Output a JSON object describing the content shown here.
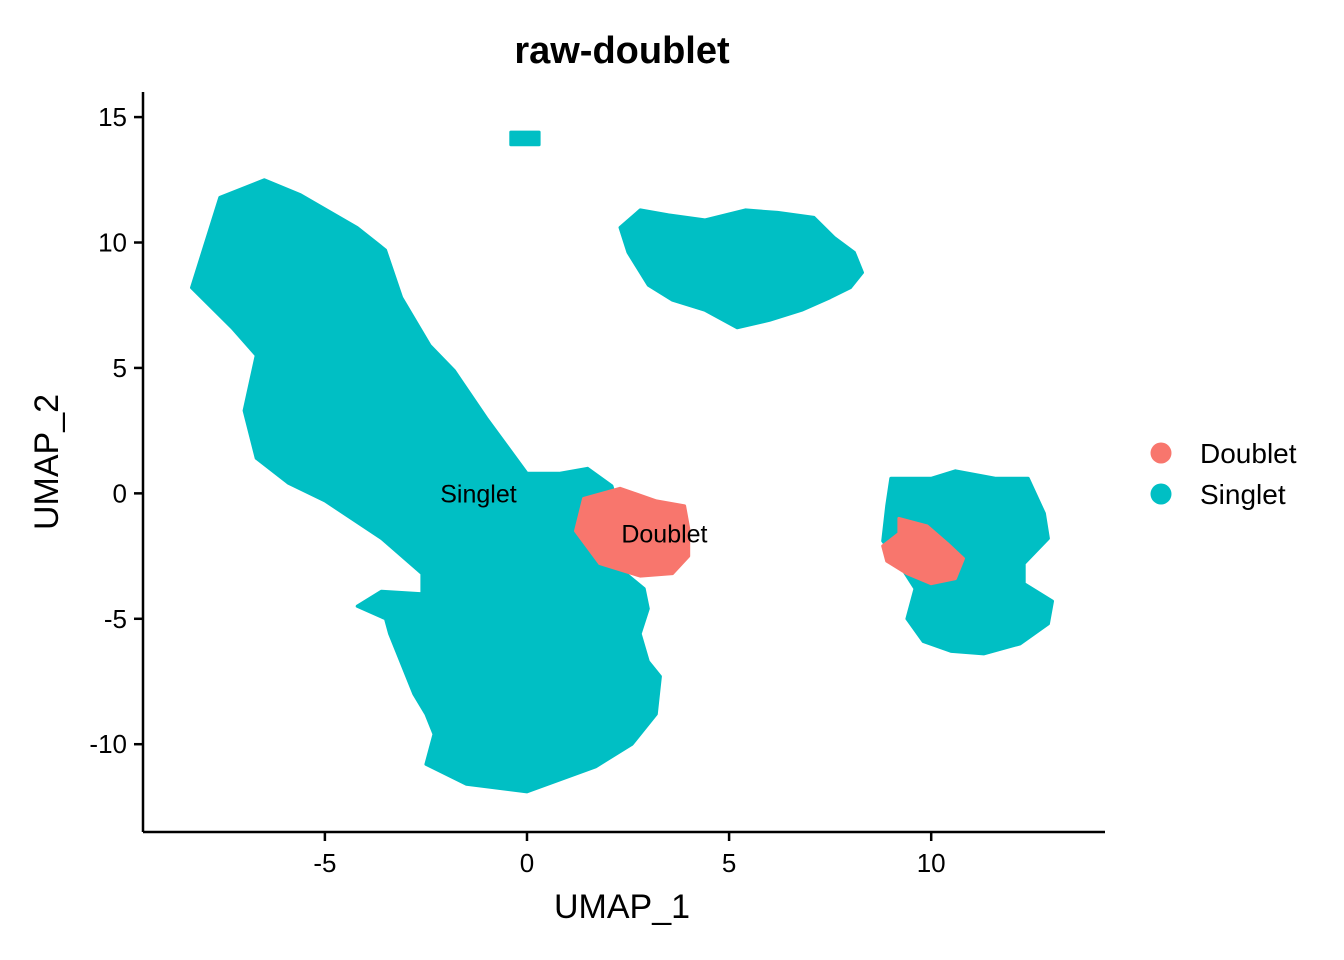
{
  "chart_data": {
    "type": "scatter",
    "title": "raw-doublet",
    "xlabel": "UMAP_1",
    "ylabel": "UMAP_2",
    "xlim": [
      -9.5,
      14.3
    ],
    "ylim": [
      -13.5,
      16.0
    ],
    "x_ticks": [
      -5,
      0,
      5,
      10
    ],
    "y_ticks": [
      -10,
      -5,
      0,
      5,
      10,
      15
    ],
    "x_tick_labels": [
      "-5",
      "0",
      "5",
      "10"
    ],
    "y_tick_labels": [
      "-10",
      "-5",
      "0",
      "5",
      "10",
      "15"
    ],
    "grid": false,
    "legend_position": "right",
    "series": [
      {
        "name": "Doublet",
        "color": "#F8766D"
      },
      {
        "name": "Singlet",
        "color": "#00BFC4"
      }
    ],
    "regions": [
      {
        "series": "Singlet",
        "points": [
          [
            -8.3,
            8.2
          ],
          [
            -7.6,
            11.8
          ],
          [
            -6.5,
            12.5
          ],
          [
            -5.6,
            11.9
          ],
          [
            -4.2,
            10.6
          ],
          [
            -3.5,
            9.7
          ],
          [
            -3.1,
            7.8
          ],
          [
            -2.4,
            5.9
          ],
          [
            -1.8,
            4.9
          ],
          [
            -1.0,
            3.0
          ],
          [
            0.0,
            0.8
          ],
          [
            0.8,
            0.8
          ],
          [
            1.5,
            1.0
          ],
          [
            2.1,
            0.3
          ],
          [
            2.4,
            -1.3
          ],
          [
            2.3,
            -3.0
          ],
          [
            2.9,
            -3.8
          ],
          [
            3.0,
            -4.6
          ],
          [
            2.8,
            -5.6
          ],
          [
            3.0,
            -6.7
          ],
          [
            3.3,
            -7.3
          ],
          [
            3.2,
            -8.8
          ],
          [
            2.6,
            -10.0
          ],
          [
            1.7,
            -10.9
          ],
          [
            0.0,
            -11.9
          ],
          [
            -1.5,
            -11.6
          ],
          [
            -2.5,
            -10.8
          ],
          [
            -2.3,
            -9.6
          ],
          [
            -2.5,
            -8.8
          ],
          [
            -2.8,
            -8.0
          ],
          [
            -3.4,
            -5.6
          ],
          [
            -3.5,
            -5.0
          ],
          [
            -4.2,
            -4.5
          ],
          [
            -3.6,
            -3.9
          ],
          [
            -2.6,
            -4.0
          ],
          [
            -2.6,
            -3.2
          ],
          [
            -3.6,
            -1.8
          ],
          [
            -5.0,
            -0.3
          ],
          [
            -5.9,
            0.4
          ],
          [
            -6.7,
            1.4
          ],
          [
            -7.0,
            3.3
          ],
          [
            -6.7,
            5.5
          ],
          [
            -7.3,
            6.6
          ]
        ]
      },
      {
        "series": "Singlet",
        "points": [
          [
            2.3,
            10.6
          ],
          [
            2.8,
            11.3
          ],
          [
            3.5,
            11.1
          ],
          [
            4.4,
            10.9
          ],
          [
            5.4,
            11.3
          ],
          [
            6.2,
            11.2
          ],
          [
            7.1,
            11.0
          ],
          [
            7.6,
            10.2
          ],
          [
            8.1,
            9.6
          ],
          [
            8.3,
            8.8
          ],
          [
            8.0,
            8.2
          ],
          [
            7.5,
            7.8
          ],
          [
            6.8,
            7.3
          ],
          [
            6.0,
            6.9
          ],
          [
            5.2,
            6.6
          ],
          [
            4.4,
            7.3
          ],
          [
            3.6,
            7.7
          ],
          [
            3.0,
            8.3
          ],
          [
            2.5,
            9.6
          ]
        ]
      },
      {
        "series": "Singlet",
        "points": [
          [
            9.0,
            0.6
          ],
          [
            10.0,
            0.6
          ],
          [
            10.6,
            0.9
          ],
          [
            11.6,
            0.6
          ],
          [
            12.4,
            0.6
          ],
          [
            12.8,
            -0.8
          ],
          [
            12.9,
            -1.8
          ],
          [
            12.3,
            -2.8
          ],
          [
            12.3,
            -3.6
          ],
          [
            13.0,
            -4.3
          ],
          [
            12.9,
            -5.2
          ],
          [
            12.2,
            -6.0
          ],
          [
            11.3,
            -6.4
          ],
          [
            10.5,
            -6.3
          ],
          [
            9.8,
            -5.9
          ],
          [
            9.4,
            -5.0
          ],
          [
            9.6,
            -3.8
          ],
          [
            9.2,
            -2.8
          ],
          [
            8.8,
            -1.9
          ],
          [
            8.9,
            -0.5
          ]
        ]
      },
      {
        "series": "Singlet",
        "points": [
          [
            -0.4,
            14.4
          ],
          [
            0.3,
            14.4
          ],
          [
            0.3,
            13.9
          ],
          [
            -0.4,
            13.9
          ]
        ]
      },
      {
        "series": "Doublet",
        "points": [
          [
            1.4,
            -0.2
          ],
          [
            2.3,
            0.2
          ],
          [
            3.2,
            -0.3
          ],
          [
            3.9,
            -0.5
          ],
          [
            4.0,
            -1.4
          ],
          [
            4.0,
            -2.5
          ],
          [
            3.6,
            -3.2
          ],
          [
            2.8,
            -3.3
          ],
          [
            1.8,
            -2.8
          ],
          [
            1.2,
            -1.5
          ]
        ]
      },
      {
        "series": "Doublet",
        "points": [
          [
            9.2,
            -1.0
          ],
          [
            9.9,
            -1.3
          ],
          [
            10.4,
            -2.0
          ],
          [
            10.8,
            -2.6
          ],
          [
            10.6,
            -3.4
          ],
          [
            10.0,
            -3.6
          ],
          [
            9.4,
            -3.2
          ],
          [
            8.9,
            -2.7
          ],
          [
            8.8,
            -2.1
          ],
          [
            9.2,
            -1.6
          ]
        ]
      }
    ],
    "annotations": [
      {
        "text": "Singlet",
        "x": -1.2,
        "y": 0.0
      },
      {
        "text": "Doublet",
        "x": 3.4,
        "y": -1.6
      }
    ]
  }
}
